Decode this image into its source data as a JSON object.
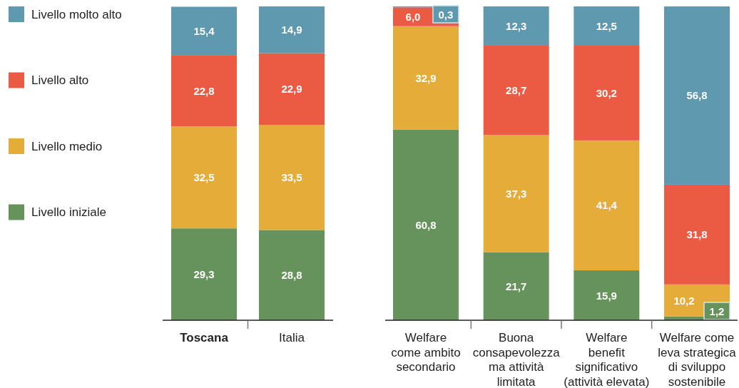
{
  "chart_data": [
    {
      "type": "bar",
      "stacked": true,
      "legend": "left",
      "categories": [
        "Toscana",
        "Italia"
      ],
      "series": [
        {
          "name": "Livello iniziale",
          "color": "#66935b",
          "values": [
            29.3,
            28.8
          ],
          "value_labels": [
            "29,3",
            "28,8"
          ]
        },
        {
          "name": "Livello medio",
          "color": "#e6ac3a",
          "values": [
            32.5,
            33.5
          ],
          "value_labels": [
            "32,5",
            "33,5"
          ]
        },
        {
          "name": "Livello alto",
          "color": "#eb5b44",
          "values": [
            22.8,
            22.9
          ],
          "value_labels": [
            "22,8",
            "22,9"
          ]
        },
        {
          "name": "Livello molto alto",
          "color": "#5e99af",
          "values": [
            15.4,
            14.9
          ],
          "value_labels": [
            "15,4",
            "14,9"
          ]
        }
      ]
    },
    {
      "type": "bar",
      "stacked": true,
      "categories": [
        "Welfare\ncome ambito\nsecondario",
        "Buona\nconsapevolezza\nma attività\nlimitata",
        "Welfare\nbenefit\nsignificativo\n(attività elevata)",
        "Welfare come\nleva strategica\ndi sviluppo\nsostenibile"
      ],
      "series": [
        {
          "color": "#66935b",
          "values": [
            60.8,
            21.7,
            15.9,
            1.2
          ],
          "value_labels": [
            "60,8",
            "21,7",
            "15,9",
            "1,2"
          ]
        },
        {
          "color": "#e6ac3a",
          "values": [
            32.9,
            37.3,
            41.4,
            10.2
          ],
          "value_labels": [
            "32,9",
            "37,3",
            "41,4",
            "10,2"
          ]
        },
        {
          "color": "#eb5b44",
          "values": [
            6.0,
            28.7,
            30.2,
            31.8
          ],
          "value_labels": [
            "6,0",
            "28,7",
            "30,2",
            "31,8"
          ]
        },
        {
          "color": "#5e99af",
          "values": [
            0.3,
            12.3,
            12.5,
            56.8
          ],
          "value_labels": [
            "0,3",
            "12,3",
            "12,5",
            "56,8"
          ]
        }
      ]
    }
  ]
}
